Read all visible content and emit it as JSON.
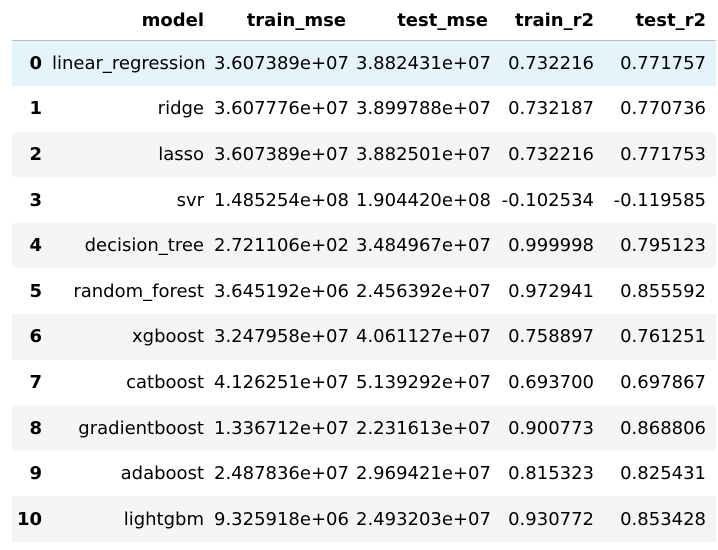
{
  "table": {
    "index_header": "",
    "columns": [
      "model",
      "train_mse",
      "test_mse",
      "train_r2",
      "test_r2"
    ],
    "rows": [
      {
        "index": "0",
        "model": "linear_regression",
        "train_mse": "3.607389e+07",
        "test_mse": "3.882431e+07",
        "train_r2": "0.732216",
        "test_r2": "0.771757"
      },
      {
        "index": "1",
        "model": "ridge",
        "train_mse": "3.607776e+07",
        "test_mse": "3.899788e+07",
        "train_r2": "0.732187",
        "test_r2": "0.770736"
      },
      {
        "index": "2",
        "model": "lasso",
        "train_mse": "3.607389e+07",
        "test_mse": "3.882501e+07",
        "train_r2": "0.732216",
        "test_r2": "0.771753"
      },
      {
        "index": "3",
        "model": "svr",
        "train_mse": "1.485254e+08",
        "test_mse": "1.904420e+08",
        "train_r2": "-0.102534",
        "test_r2": "-0.119585"
      },
      {
        "index": "4",
        "model": "decision_tree",
        "train_mse": "2.721106e+02",
        "test_mse": "3.484967e+07",
        "train_r2": "0.999998",
        "test_r2": "0.795123"
      },
      {
        "index": "5",
        "model": "random_forest",
        "train_mse": "3.645192e+06",
        "test_mse": "2.456392e+07",
        "train_r2": "0.972941",
        "test_r2": "0.855592"
      },
      {
        "index": "6",
        "model": "xgboost",
        "train_mse": "3.247958e+07",
        "test_mse": "4.061127e+07",
        "train_r2": "0.758897",
        "test_r2": "0.761251"
      },
      {
        "index": "7",
        "model": "catboost",
        "train_mse": "4.126251e+07",
        "test_mse": "5.139292e+07",
        "train_r2": "0.693700",
        "test_r2": "0.697867"
      },
      {
        "index": "8",
        "model": "gradientboost",
        "train_mse": "1.336712e+07",
        "test_mse": "2.231613e+07",
        "train_r2": "0.900773",
        "test_r2": "0.868806"
      },
      {
        "index": "9",
        "model": "adaboost",
        "train_mse": "2.487836e+07",
        "test_mse": "2.969421e+07",
        "train_r2": "0.815323",
        "test_r2": "0.825431"
      },
      {
        "index": "10",
        "model": "lightgbm",
        "train_mse": "9.325918e+06",
        "test_mse": "2.493203e+07",
        "train_r2": "0.930772",
        "test_r2": "0.853428"
      }
    ],
    "hovered_row_index": "0",
    "colors": {
      "header_border": "#bdbdbd",
      "row_odd": "#f5f5f5",
      "row_even": "#ffffff",
      "row_hover": "#e5f3fb",
      "text": "#000000"
    }
  }
}
